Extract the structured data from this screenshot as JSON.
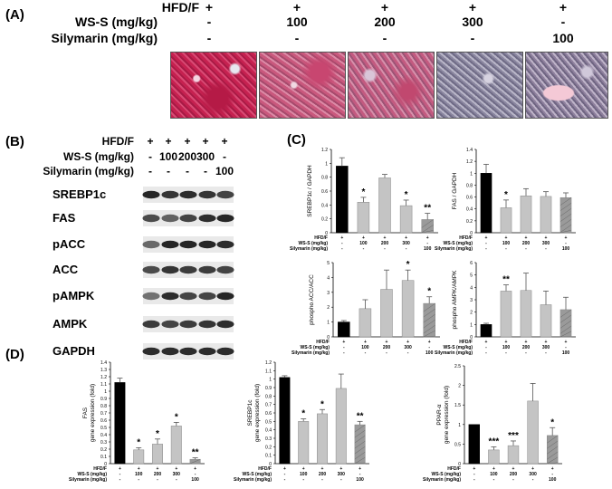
{
  "panels": {
    "A": "(A)",
    "B": "(B)",
    "C": "(C)",
    "D": "(D)"
  },
  "treatment_a": {
    "labels": [
      "HFD/F",
      "WS-S (mg/kg)",
      "Silymarin (mg/kg)"
    ],
    "rows": [
      [
        "+",
        "+",
        "+",
        "+",
        "+"
      ],
      [
        "-",
        "100",
        "200",
        "300",
        "-"
      ],
      [
        "-",
        "-",
        "-",
        "-",
        "100"
      ]
    ]
  },
  "treatment_b": {
    "labels": [
      "HFD/F",
      "WS-S (mg/kg)",
      "Silymarin (mg/kg)"
    ],
    "rows": [
      [
        "+",
        "+",
        "+",
        "+",
        "+"
      ],
      [
        "-",
        "100",
        "200",
        "300",
        "-"
      ],
      [
        "-",
        "-",
        "-",
        "-",
        "100"
      ]
    ]
  },
  "blot_labels": [
    "SREBP1c",
    "FAS",
    "pACC",
    "ACC",
    "pAMPK",
    "AMPK",
    "GAPDH"
  ],
  "bar_colors": {
    "control": "#000000",
    "ws": "#c4c4c4",
    "silymarin": "#9a9a9a"
  },
  "small_table": {
    "labels": [
      "HFD/F",
      "WS-S (mg/kg)",
      "Silymarin (mg/kg)"
    ],
    "rows": [
      [
        "+",
        "+",
        "+",
        "+",
        "+"
      ],
      [
        "-",
        "100",
        "200",
        "300",
        "-"
      ],
      [
        "-",
        "-",
        "-",
        "-",
        "100"
      ]
    ]
  },
  "chart_data": [
    {
      "panel": "C",
      "type": "bar",
      "categories": [
        "1",
        "2",
        "3",
        "4",
        "5"
      ],
      "ylabel": "SREBP1c / GAPDH",
      "ylim": [
        0,
        1.2
      ],
      "yticks": [
        "0",
        "0.2",
        "0.4",
        "0.6",
        "0.8",
        "1",
        "1.2"
      ],
      "values": [
        0.96,
        0.44,
        0.79,
        0.39,
        0.19
      ],
      "errors": [
        0.12,
        0.07,
        0.05,
        0.08,
        0.09
      ],
      "sig": [
        "",
        "*",
        "",
        "*",
        "**"
      ]
    },
    {
      "panel": "C",
      "type": "bar",
      "categories": [
        "1",
        "2",
        "3",
        "4",
        "5"
      ],
      "ylabel": "FAS / GAPDH",
      "ylim": [
        0,
        1.4
      ],
      "yticks": [
        "0",
        "0.2",
        "0.4",
        "0.6",
        "0.8",
        "1",
        "1.2",
        "1.4"
      ],
      "values": [
        1.0,
        0.42,
        0.62,
        0.61,
        0.59
      ],
      "errors": [
        0.15,
        0.13,
        0.12,
        0.08,
        0.08
      ],
      "sig": [
        "",
        "*",
        "",
        "",
        ""
      ]
    },
    {
      "panel": "C",
      "type": "bar",
      "categories": [
        "1",
        "2",
        "3",
        "4",
        "5"
      ],
      "ylabel": "phospho ACC/ACC",
      "ylim": [
        0,
        5
      ],
      "yticks": [
        "0",
        "1",
        "2",
        "3",
        "4",
        "5"
      ],
      "values": [
        1.0,
        1.9,
        3.2,
        3.8,
        2.25
      ],
      "errors": [
        0.1,
        0.6,
        1.3,
        0.7,
        0.45
      ],
      "sig": [
        "",
        "",
        "",
        "*",
        "*"
      ]
    },
    {
      "panel": "C",
      "type": "bar",
      "categories": [
        "1",
        "2",
        "3",
        "4",
        "5"
      ],
      "ylabel": "phospho AMPK/AMPK",
      "ylim": [
        0,
        6
      ],
      "yticks": [
        "0",
        "1",
        "2",
        "3",
        "4",
        "5",
        "6"
      ],
      "values": [
        1.0,
        3.7,
        3.75,
        2.6,
        2.2
      ],
      "errors": [
        0.1,
        0.5,
        1.4,
        1.1,
        1.0
      ],
      "sig": [
        "",
        "**",
        "",
        "",
        ""
      ]
    },
    {
      "panel": "D",
      "type": "bar",
      "categories": [
        "1",
        "2",
        "3",
        "4",
        "5"
      ],
      "ylabel": "FAS\ngene expression (fold)",
      "ylim": [
        0,
        1.4
      ],
      "yticks": [
        "0",
        "0.1",
        "0.2",
        "0.3",
        "0.4",
        "0.5",
        "0.6",
        "0.7",
        "0.8",
        "0.9",
        "1",
        "1.1",
        "1.2",
        "1.3",
        "1.4"
      ],
      "values": [
        1.12,
        0.19,
        0.27,
        0.52,
        0.06
      ],
      "errors": [
        0.06,
        0.03,
        0.07,
        0.05,
        0.02
      ],
      "sig": [
        "",
        "*",
        "*",
        "*",
        "**"
      ]
    },
    {
      "panel": "D",
      "type": "bar",
      "categories": [
        "1",
        "2",
        "3",
        "4",
        "5"
      ],
      "ylabel": "SREBP1c\ngene expression (fold)",
      "ylim": [
        0,
        1.2
      ],
      "yticks": [
        "0",
        "0.1",
        "0.2",
        "0.3",
        "0.4",
        "0.5",
        "0.6",
        "0.7",
        "0.8",
        "0.9",
        "1",
        "1.1",
        "1.2"
      ],
      "values": [
        1.02,
        0.5,
        0.59,
        0.89,
        0.46
      ],
      "errors": [
        0.02,
        0.03,
        0.05,
        0.17,
        0.04
      ],
      "sig": [
        "",
        "*",
        "*",
        "",
        "**"
      ]
    },
    {
      "panel": "D",
      "type": "bar",
      "categories": [
        "1",
        "2",
        "3",
        "4",
        "5"
      ],
      "ylabel": "PPAR-α\ngene expression (fold)",
      "ylim": [
        0,
        2.5
      ],
      "yticks": [
        "0",
        "0.5",
        "1",
        "1.5",
        "2",
        "2.5"
      ],
      "values": [
        1.0,
        0.35,
        0.46,
        1.6,
        0.72
      ],
      "errors": [
        0.0,
        0.08,
        0.12,
        0.45,
        0.2
      ],
      "sig": [
        "",
        "***",
        "***",
        "",
        "*"
      ]
    }
  ]
}
